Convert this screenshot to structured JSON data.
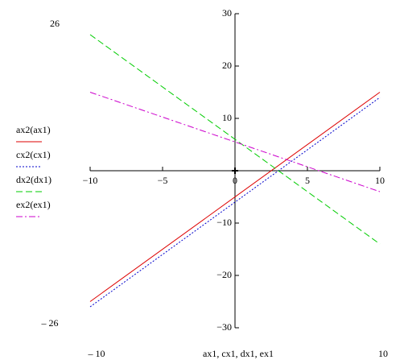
{
  "chart_data": {
    "type": "line",
    "x_label": "ax1, cx1, dx1, ex1",
    "x": [
      -10,
      10
    ],
    "series": [
      {
        "name": "ax2(ax1)",
        "color": "#dd0000",
        "style": "solid",
        "values": [
          -25,
          15
        ]
      },
      {
        "name": "cx2(cx1)",
        "color": "#0000cc",
        "style": "dotted",
        "values": [
          -26,
          14
        ]
      },
      {
        "name": "dx2(dx1)",
        "color": "#00cc00",
        "style": "dashed",
        "values": [
          26,
          -14
        ]
      },
      {
        "name": "ex2(ex1)",
        "color": "#cc00cc",
        "style": "dashdot",
        "values": [
          15,
          -4
        ]
      }
    ],
    "xlim": [
      -10,
      10
    ],
    "ylim": [
      -30,
      30
    ],
    "xticks": [
      {
        "value": -10,
        "label": "−10"
      },
      {
        "value": -5,
        "label": "−5"
      },
      0,
      5,
      10
    ],
    "yticks": [
      {
        "value": -30,
        "label": "−30"
      },
      {
        "value": -20,
        "label": "−20"
      },
      {
        "value": -10,
        "label": "−10"
      },
      10,
      20,
      30
    ],
    "range_labels": {
      "y_top": "26",
      "y_bottom": "– 26",
      "x_left": "– 10",
      "x_right": "10"
    },
    "legend": "left",
    "grid": false
  }
}
